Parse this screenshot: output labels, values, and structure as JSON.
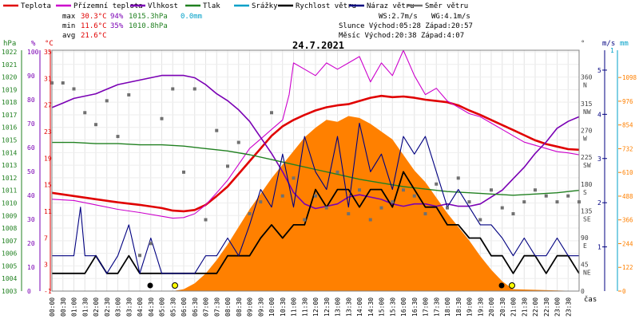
{
  "chart_data": {
    "type": "line",
    "title": "24.7.2021",
    "xlabel": "čas",
    "colors": {
      "teplota": "#e00000",
      "pocitova": "#cc00cc",
      "vlhkost": "#7a00b4",
      "tlak": "#208020",
      "srazky": "#00a0c8",
      "rychlost": "#000000",
      "naraz": "#000080",
      "smer": "#707070",
      "slunce": "#ff8000",
      "hpa": "#208020",
      "pct": "#7a00b4",
      "degc": "#e00000",
      "ms": "#000080",
      "mm": "#00a0c8",
      "wm2": "#ff8000"
    },
    "legend": [
      {
        "label": "Teplota",
        "key": "teplota"
      },
      {
        "label": "Přízemní teplota",
        "key": "pocitova"
      },
      {
        "label": "Vlhkost",
        "key": "vlhkost"
      },
      {
        "label": "Tlak",
        "key": "tlak"
      },
      {
        "label": "Srážky",
        "key": "srazky"
      },
      {
        "label": "Rychlost větru",
        "key": "rychlost"
      },
      {
        "label": "Náraz větru",
        "key": "naraz"
      },
      {
        "label": "Směr větru",
        "key": "smer"
      }
    ],
    "stats": {
      "max_label": "max",
      "max_temp": "30.3°C",
      "max_hum": "94%",
      "max_press": "1015.3hPa",
      "rain": "0.0mm",
      "min_label": "min",
      "min_temp": "11.6°C",
      "min_hum": "35%",
      "min_press": "1010.8hPa",
      "avg_label": "avg",
      "avg_temp": "21.6°C"
    },
    "wind_info": {
      "ws": "WS:2.7m/s",
      "wg": "WG:4.1m/s"
    },
    "sun_info": "Slunce Východ:05:28  Západ:20:57",
    "moon_info": "Měsíc  Východ:20:38  Západ:4:07",
    "axis_units": {
      "hpa": "hPa",
      "pct": "%",
      "degc": "°C",
      "deg": "°",
      "ms": "m/s",
      "mm": "mm",
      "wm2": "W/m2"
    },
    "x_ticks": [
      "00:00",
      "00:30",
      "01:00",
      "01:30",
      "02:00",
      "02:30",
      "03:00",
      "03:30",
      "04:00",
      "04:30",
      "05:00",
      "05:30",
      "06:00",
      "06:30",
      "07:00",
      "07:30",
      "08:00",
      "08:30",
      "09:00",
      "09:30",
      "10:00",
      "10:30",
      "11:00",
      "11:30",
      "12:00",
      "12:30",
      "13:00",
      "13:30",
      "14:00",
      "14:30",
      "15:00",
      "15:30",
      "16:00",
      "16:30",
      "17:00",
      "17:30",
      "18:00",
      "18:30",
      "19:00",
      "19:30",
      "20:00",
      "20:30",
      "21:00",
      "21:30",
      "22:00",
      "22:30",
      "23:00",
      "23:30"
    ],
    "y_hpa_ticks": [
      "1022",
      "1021",
      "1020",
      "1019",
      "1018",
      "1017",
      "1016",
      "1015",
      "1014",
      "1013",
      "1012",
      "1011",
      "1010",
      "1009",
      "1008",
      "1007",
      "1006",
      "1005",
      "1004",
      "1003"
    ],
    "y_pct_ticks": [
      "100",
      "90",
      "80",
      "70",
      "60",
      "50",
      "40",
      "30",
      "20",
      "10",
      "0"
    ],
    "y_temp_ticks": [
      "35",
      "31",
      "27",
      "23",
      "19",
      "15",
      "11",
      "7",
      "3",
      "-1"
    ],
    "y_dir_ticks": [
      {
        "deg": "360",
        "dir": "N"
      },
      {
        "deg": "315",
        "dir": "NW"
      },
      {
        "deg": "270",
        "dir": "W"
      },
      {
        "deg": "225",
        "dir": "SW"
      },
      {
        "deg": "180",
        "dir": "S"
      },
      {
        "deg": "135",
        "dir": "SE"
      },
      {
        "deg": "90",
        "dir": "E"
      },
      {
        "deg": "45",
        "dir": "NE"
      },
      {
        "deg": "0",
        "dir": ""
      }
    ],
    "y_ms_ticks": [
      "5",
      "4",
      "3",
      "2",
      "1"
    ],
    "y_mm_ticks": [
      "1"
    ],
    "y_wm2_ticks": [
      "1098",
      "976",
      "854",
      "732",
      "610",
      "488",
      "366",
      "244",
      "122",
      "0"
    ],
    "ranges": {
      "x": [
        0,
        24
      ],
      "temp": [
        -1,
        37
      ],
      "hum": [
        0,
        105
      ],
      "press": [
        1003,
        1022.6
      ],
      "wind": [
        0,
        5.45
      ],
      "dir": [
        0,
        405
      ],
      "solar": [
        0,
        1238
      ]
    },
    "series": [
      {
        "name": "Teplota",
        "key": "teplota",
        "x": [
          0,
          1,
          2,
          3,
          4,
          5,
          5.5,
          6,
          6.5,
          7,
          7.5,
          8,
          8.5,
          9,
          9.5,
          10,
          10.5,
          11,
          11.5,
          12,
          12.5,
          13,
          13.5,
          14,
          14.5,
          15,
          15.5,
          16,
          16.5,
          17,
          17.5,
          18,
          18.5,
          19,
          19.5,
          20,
          20.5,
          21,
          21.5,
          22,
          22.5,
          23,
          23.5,
          24
        ],
        "y": [
          14.5,
          14,
          13.5,
          13,
          12.6,
          12.1,
          11.7,
          11.6,
          11.8,
          12.6,
          14,
          15.5,
          17.5,
          19.5,
          21.5,
          23.5,
          25,
          26,
          26.8,
          27.5,
          28,
          28.3,
          28.5,
          29,
          29.5,
          29.8,
          29.6,
          29.7,
          29.5,
          29.2,
          29,
          28.8,
          28.3,
          27.5,
          26.8,
          26,
          25.2,
          24.4,
          23.6,
          22.8,
          22.2,
          21.8,
          21.4,
          21.3
        ]
      },
      {
        "name": "Přízemní teplota",
        "key": "pocitova",
        "x": [
          0,
          1,
          2,
          3,
          4,
          5,
          5.5,
          6,
          6.5,
          7,
          7.5,
          8,
          8.5,
          9,
          9.5,
          10,
          10.5,
          10.8,
          11,
          11.5,
          12,
          12.5,
          13,
          13.5,
          14,
          14.5,
          15,
          15.5,
          16,
          16.5,
          17,
          17.5,
          18,
          18.5,
          19,
          19.5,
          20,
          20.5,
          21,
          21.5,
          22,
          22.5,
          23,
          23.5,
          24
        ],
        "y": [
          13.5,
          13.3,
          12.6,
          11.9,
          11.4,
          10.8,
          10.5,
          10.6,
          11.2,
          12.6,
          14.5,
          16.5,
          19,
          21.5,
          23,
          24.5,
          26,
          30,
          35,
          34,
          33,
          35,
          34,
          35,
          36,
          32,
          35,
          33,
          37,
          33,
          30,
          31,
          29,
          28,
          27,
          26.5,
          25.5,
          24.5,
          23.5,
          22.5,
          22,
          21.5,
          21,
          20.8,
          20.5
        ]
      },
      {
        "name": "Vlhkost",
        "key": "vlhkost",
        "x": [
          0,
          0.5,
          1,
          2,
          3,
          4,
          5,
          6,
          6.5,
          7,
          7.5,
          8,
          8.5,
          9,
          9.5,
          10,
          10.5,
          11,
          11.5,
          12,
          12.5,
          13,
          13.5,
          14,
          14.5,
          15,
          15.5,
          16,
          16.5,
          17,
          17.5,
          18,
          18.5,
          19,
          19.5,
          20,
          20.5,
          21,
          21.5,
          22,
          22.5,
          23,
          23.5,
          24
        ],
        "y": [
          80,
          82,
          84,
          86,
          90,
          92,
          94,
          94,
          93,
          90,
          86,
          83,
          79,
          74,
          67,
          60,
          52,
          43,
          38,
          36,
          37,
          38,
          41,
          42,
          41,
          40,
          38,
          37,
          38,
          38,
          37,
          38,
          37,
          37,
          38,
          41,
          44,
          49,
          54,
          60,
          65,
          71,
          74,
          76
        ]
      },
      {
        "name": "Tlak",
        "key": "tlak",
        "x": [
          0,
          1,
          2,
          3,
          4,
          5,
          6,
          7,
          8,
          9,
          10,
          11,
          12,
          13,
          14,
          15,
          16,
          17,
          18,
          19,
          20,
          21,
          22,
          23,
          24
        ],
        "y": [
          1015.1,
          1015.1,
          1015.0,
          1015.0,
          1014.9,
          1014.9,
          1014.8,
          1014.6,
          1014.4,
          1014.1,
          1013.7,
          1013.3,
          1012.9,
          1012.5,
          1012.1,
          1011.8,
          1011.5,
          1011.3,
          1011.1,
          1011.0,
          1010.9,
          1010.8,
          1010.9,
          1011.0,
          1011.2
        ]
      },
      {
        "name": "Rychlost větru",
        "key": "rychlost",
        "x": [
          0,
          0.5,
          1,
          1.5,
          2,
          2.5,
          3,
          3.5,
          4,
          4.5,
          5,
          5.5,
          6,
          6.5,
          7,
          7.5,
          8,
          8.5,
          9,
          9.5,
          10,
          10.5,
          11,
          11.5,
          12,
          12.5,
          13,
          13.5,
          14,
          14.5,
          15,
          15.5,
          16,
          16.5,
          17,
          17.5,
          18,
          18.5,
          19,
          19.5,
          20,
          20.5,
          21,
          21.5,
          22,
          22.5,
          23,
          23.5,
          24
        ],
        "y": [
          0.4,
          0.4,
          0.4,
          0.4,
          0.8,
          0.4,
          0.4,
          0.8,
          0.4,
          0.4,
          0.4,
          0.4,
          0.4,
          0.4,
          0.4,
          0.4,
          0.8,
          0.8,
          0.8,
          1.2,
          1.5,
          1.2,
          1.5,
          1.5,
          2.3,
          1.9,
          2.3,
          2.3,
          1.9,
          2.3,
          2.3,
          1.9,
          2.7,
          2.3,
          1.9,
          1.9,
          1.5,
          1.5,
          1.2,
          1.2,
          0.8,
          0.8,
          0.4,
          0.8,
          0.8,
          0.4,
          0.8,
          0.8,
          0.4
        ]
      },
      {
        "name": "Náraz větru",
        "key": "naraz",
        "x": [
          0,
          0.5,
          1,
          1.3,
          1.5,
          2,
          2.5,
          3,
          3.5,
          4,
          4.5,
          5,
          5.5,
          6,
          6.5,
          7,
          7.5,
          8,
          8.5,
          9,
          9.5,
          10,
          10.5,
          11,
          11.5,
          12,
          12.5,
          13,
          13.5,
          14,
          14.5,
          15,
          15.5,
          16,
          16.5,
          17,
          17.5,
          18,
          18.5,
          19,
          19.5,
          20,
          20.5,
          21,
          21.5,
          22,
          22.5,
          23,
          23.5,
          24
        ],
        "y": [
          0.8,
          0.8,
          0.8,
          1.9,
          0.8,
          0.8,
          0.4,
          0.8,
          1.5,
          0.4,
          1.2,
          0.4,
          0.4,
          0.4,
          0.4,
          0.8,
          0.8,
          1.2,
          0.8,
          1.5,
          2.3,
          1.9,
          3.1,
          1.9,
          3.5,
          2.7,
          2.3,
          3.5,
          1.9,
          3.8,
          2.7,
          3.1,
          2.3,
          3.5,
          3.1,
          3.5,
          2.7,
          1.9,
          2.3,
          1.9,
          1.5,
          1.5,
          1.2,
          0.8,
          1.2,
          0.8,
          0.8,
          1.2,
          0.8,
          0.8
        ]
      },
      {
        "name": "Směr větru",
        "key": "smer",
        "x": [
          0,
          0.5,
          1,
          1.5,
          2,
          2.5,
          3,
          3.5,
          4,
          4.5,
          5,
          5.5,
          6,
          6.5,
          7,
          7.5,
          8,
          8.5,
          9,
          9.5,
          10,
          10.5,
          11,
          11.5,
          12,
          12.5,
          13,
          13.5,
          14,
          14.5,
          15,
          15.5,
          16,
          16.5,
          17,
          17.5,
          18,
          18.5,
          19,
          19.5,
          20,
          20.5,
          21,
          21.5,
          22,
          22.5,
          23,
          23.5,
          24
        ],
        "y": [
          350,
          350,
          340,
          300,
          280,
          320,
          260,
          330,
          60,
          80,
          290,
          340,
          200,
          340,
          120,
          270,
          210,
          250,
          130,
          150,
          300,
          160,
          190,
          120,
          160,
          140,
          200,
          130,
          170,
          120,
          140,
          150,
          170,
          160,
          130,
          180,
          140,
          190,
          150,
          120,
          170,
          140,
          130,
          150,
          170,
          160,
          150,
          160,
          150
        ]
      },
      {
        "name": "Sluneční záření",
        "key": "slunce",
        "x": [
          0,
          5.5,
          6,
          6.5,
          7,
          7.5,
          8,
          8.5,
          9,
          9.5,
          10,
          10.5,
          11,
          11.5,
          12,
          12.5,
          13,
          13.5,
          14,
          14.5,
          15,
          15.5,
          16,
          16.5,
          17,
          17.5,
          18,
          18.5,
          19,
          19.5,
          20,
          20.5,
          21,
          24
        ],
        "y": [
          0,
          0,
          10,
          40,
          90,
          160,
          240,
          330,
          420,
          500,
          580,
          650,
          720,
          790,
          840,
          880,
          870,
          900,
          890,
          860,
          820,
          780,
          700,
          620,
          560,
          480,
          400,
          330,
          260,
          180,
          110,
          50,
          10,
          0
        ]
      }
    ]
  }
}
